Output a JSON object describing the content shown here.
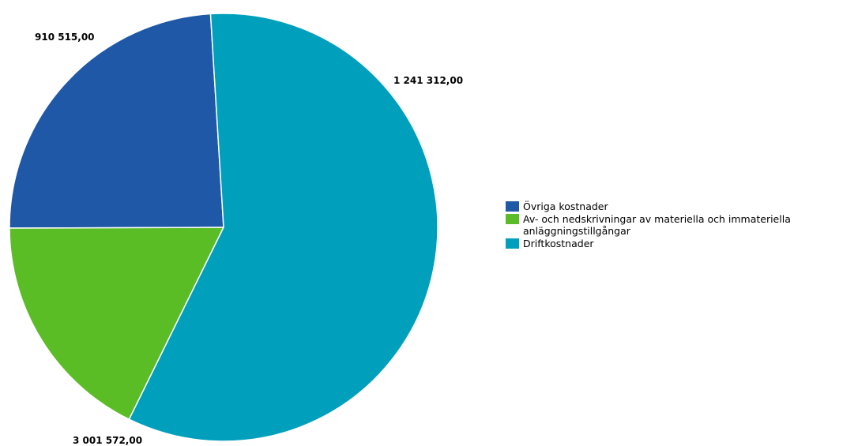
{
  "chart_data": {
    "type": "pie",
    "slices": [
      {
        "label": "Övriga kostnader",
        "value": 1241312.0,
        "display_value": "1 241 312,00",
        "color": "#1f58a6"
      },
      {
        "label": "Av- och nedskrivningar av materiella och immateriella anläggningstillgångar",
        "value": 910515.0,
        "display_value": "910 515,00",
        "color": "#5bbd25"
      },
      {
        "label": "Driftkostnader",
        "value": 3001572.0,
        "display_value": "3 001 572,00",
        "color": "#00a0bd"
      }
    ],
    "start_angle_deg": 3.5,
    "direction": "counterclockwise",
    "legend_position": "right"
  }
}
